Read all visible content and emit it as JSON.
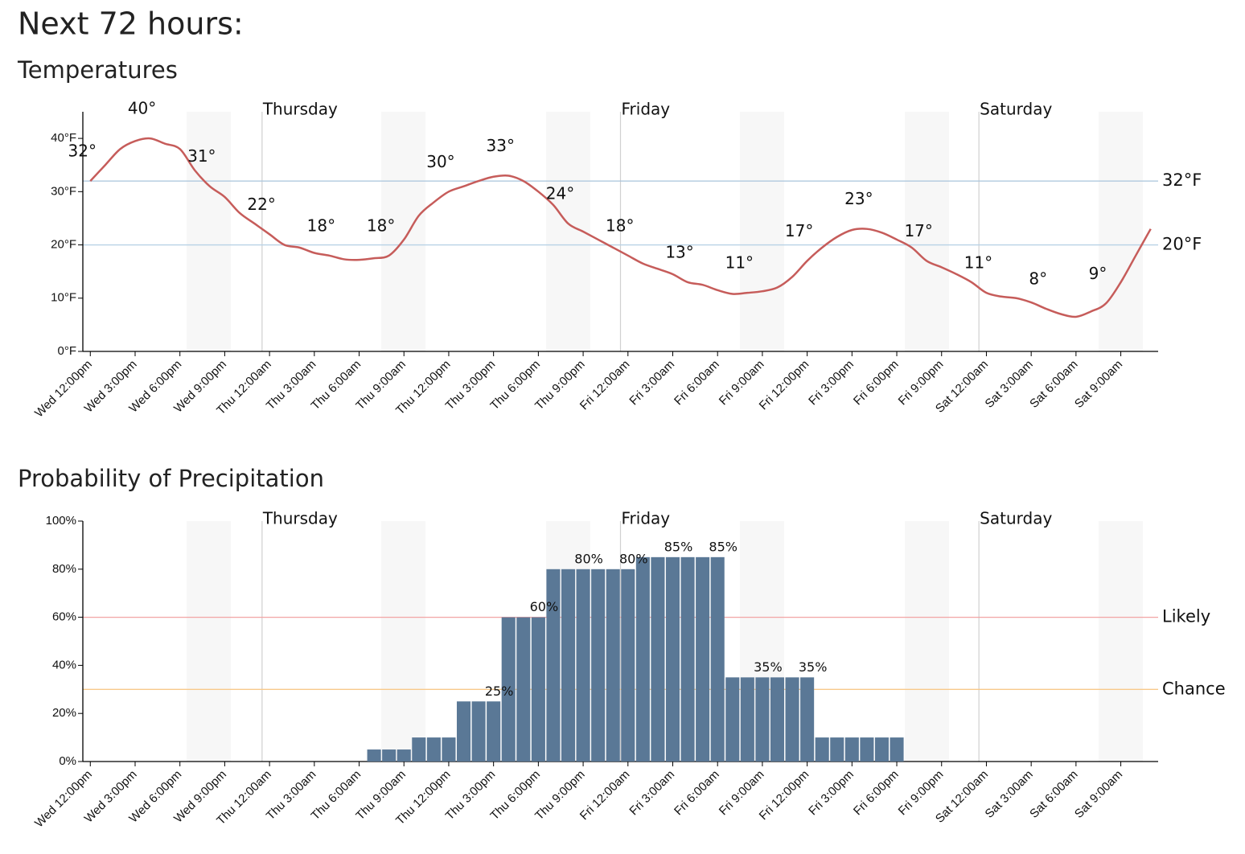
{
  "title": "Next 72 hours:",
  "chart_data": [
    {
      "type": "line",
      "title": "Temperatures",
      "color": "#c65c5a",
      "categories": [
        "Wed 12:00pm",
        null,
        null,
        "Wed 3:00pm",
        null,
        null,
        "Wed 6:00pm",
        null,
        null,
        "Wed 9:00pm",
        null,
        null,
        "Thu 12:00am",
        null,
        null,
        "Thu 3:00am",
        null,
        null,
        "Thu 6:00am",
        null,
        null,
        "Thu 9:00am",
        null,
        null,
        "Thu 12:00pm",
        null,
        null,
        "Thu 3:00pm",
        null,
        null,
        "Thu 6:00pm",
        null,
        null,
        "Thu 9:00pm",
        null,
        null,
        "Fri 12:00am",
        null,
        null,
        "Fri 3:00am",
        null,
        null,
        "Fri 6:00am",
        null,
        null,
        "Fri 9:00am",
        null,
        null,
        "Fri 12:00pm",
        null,
        null,
        "Fri 3:00pm",
        null,
        null,
        "Fri 6:00pm",
        null,
        null,
        "Fri 9:00pm",
        null,
        null,
        "Sat 12:00am",
        null,
        null,
        "Sat 3:00am",
        null,
        null,
        "Sat 6:00am",
        null,
        null,
        "Sat 9:00am",
        null,
        null
      ],
      "values": [
        32,
        35,
        38,
        39.5,
        40,
        39,
        38,
        34,
        31,
        29,
        26,
        24,
        22,
        20,
        19.5,
        18.5,
        18,
        17.3,
        17.2,
        17.5,
        18,
        21,
        25.5,
        28,
        30,
        31,
        32,
        32.8,
        33,
        32,
        30,
        27.5,
        24,
        22.5,
        21,
        19.5,
        18,
        16.5,
        15.5,
        14.5,
        13,
        12.5,
        11.5,
        10.8,
        11,
        11.3,
        12,
        14,
        17,
        19.5,
        21.5,
        22.8,
        23,
        22.3,
        21,
        19.5,
        17,
        15.8,
        14.5,
        13,
        11,
        10.3,
        10,
        9.2,
        8,
        7,
        6.5,
        7.5,
        9,
        13,
        18,
        23
      ],
      "value_labels": [
        "32°",
        null,
        null,
        null,
        "40°",
        null,
        null,
        null,
        "31°",
        null,
        null,
        null,
        "22°",
        null,
        null,
        null,
        "18°",
        null,
        null,
        null,
        "18°",
        null,
        null,
        null,
        "30°",
        null,
        null,
        null,
        "33°",
        null,
        null,
        null,
        "24°",
        null,
        null,
        null,
        "18°",
        null,
        null,
        null,
        "13°",
        null,
        null,
        null,
        "11°",
        null,
        null,
        null,
        "17°",
        null,
        null,
        null,
        "23°",
        null,
        null,
        null,
        "17°",
        null,
        null,
        null,
        "11°",
        null,
        null,
        null,
        "8°",
        null,
        null,
        null,
        "9°",
        null,
        null,
        null
      ],
      "xlim": [
        -0.5,
        71.5
      ],
      "ylim": [
        0,
        45
      ],
      "yticks": [
        {
          "value": 0,
          "label": "0°F"
        },
        {
          "value": 10,
          "label": "10°F"
        },
        {
          "value": 20,
          "label": "20°F"
        },
        {
          "value": 30,
          "label": "30°F"
        },
        {
          "value": 40,
          "label": "40°F"
        }
      ],
      "day_markers": [
        {
          "label": "Thursday",
          "x": 11.5
        },
        {
          "label": "Friday",
          "x": 35.5
        },
        {
          "label": "Saturday",
          "x": 59.5
        }
      ],
      "reference_lines": [
        {
          "value": 32,
          "label": "32°F",
          "color": "#a9c4dc"
        },
        {
          "value": 20,
          "label": "20°F",
          "color": "#b8d2e6"
        }
      ]
    },
    {
      "type": "bar",
      "title": "Probability of Precipitation",
      "color": "#5a7896",
      "categories": [
        "Wed 12:00pm",
        null,
        null,
        "Wed 3:00pm",
        null,
        null,
        "Wed 6:00pm",
        null,
        null,
        "Wed 9:00pm",
        null,
        null,
        "Thu 12:00am",
        null,
        null,
        "Thu 3:00am",
        null,
        null,
        "Thu 6:00am",
        null,
        null,
        "Thu 9:00am",
        null,
        null,
        "Thu 12:00pm",
        null,
        null,
        "Thu 3:00pm",
        null,
        null,
        "Thu 6:00pm",
        null,
        null,
        "Thu 9:00pm",
        null,
        null,
        "Fri 12:00am",
        null,
        null,
        "Fri 3:00am",
        null,
        null,
        "Fri 6:00am",
        null,
        null,
        "Fri 9:00am",
        null,
        null,
        "Fri 12:00pm",
        null,
        null,
        "Fri 3:00pm",
        null,
        null,
        "Fri 6:00pm",
        null,
        null,
        "Fri 9:00pm",
        null,
        null,
        "Sat 12:00am",
        null,
        null,
        "Sat 3:00am",
        null,
        null,
        "Sat 6:00am",
        null,
        null,
        "Sat 9:00am",
        null,
        null
      ],
      "values": [
        0,
        0,
        0,
        0,
        0,
        0,
        0,
        0,
        0,
        0,
        0,
        0,
        0,
        0,
        0,
        0,
        0,
        0,
        0,
        5,
        5,
        5,
        10,
        10,
        10,
        25,
        25,
        25,
        60,
        60,
        60,
        80,
        80,
        80,
        80,
        80,
        80,
        85,
        85,
        85,
        85,
        85,
        85,
        35,
        35,
        35,
        35,
        35,
        35,
        10,
        10,
        10,
        10,
        10,
        10,
        0,
        0,
        0,
        0,
        0,
        0,
        0,
        0,
        0,
        0,
        0,
        0,
        0,
        0,
        0,
        0,
        0
      ],
      "value_labels": [
        null,
        null,
        null,
        null,
        null,
        null,
        null,
        null,
        null,
        null,
        null,
        null,
        null,
        null,
        null,
        null,
        null,
        null,
        null,
        null,
        null,
        null,
        null,
        null,
        null,
        null,
        null,
        "25%",
        null,
        null,
        "60%",
        null,
        null,
        "80%",
        null,
        null,
        "80%",
        null,
        null,
        "85%",
        null,
        null,
        "85%",
        null,
        null,
        "35%",
        null,
        null,
        "35%",
        null,
        null,
        null,
        null,
        null,
        null,
        null,
        null,
        null,
        null,
        null,
        null,
        null,
        null,
        null,
        null,
        null,
        null,
        null,
        null,
        null,
        null,
        null
      ],
      "xlim": [
        -0.5,
        71.5
      ],
      "ylim": [
        0,
        100
      ],
      "yticks": [
        {
          "value": 0,
          "label": "0%"
        },
        {
          "value": 20,
          "label": "20%"
        },
        {
          "value": 40,
          "label": "40%"
        },
        {
          "value": 60,
          "label": "60%"
        },
        {
          "value": 80,
          "label": "80%"
        },
        {
          "value": 100,
          "label": "100%"
        }
      ],
      "day_markers": [
        {
          "label": "Thursday",
          "x": 11.5
        },
        {
          "label": "Friday",
          "x": 35.5
        },
        {
          "label": "Saturday",
          "x": 59.5
        }
      ],
      "reference_lines": [
        {
          "value": 60,
          "label": "Likely",
          "color": "#f2a4a4"
        },
        {
          "value": 30,
          "label": "Chance",
          "color": "#f8c98a"
        }
      ]
    }
  ]
}
